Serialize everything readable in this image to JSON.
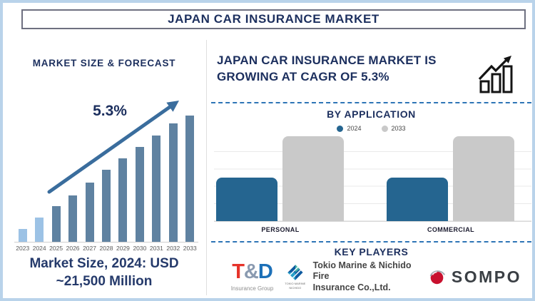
{
  "page": {
    "title": "JAPAN CAR INSURANCE MARKET"
  },
  "colors": {
    "navy": "#1c2f5e",
    "forecast_bar_steel_blue": "#5f82a1",
    "forecast_bar_light_blue": "#9cc2e5",
    "arrow_blue": "#3a6d9d",
    "application_2024_blue": "#256590",
    "application_2033_gray": "#c9c9c9",
    "dashed_separator_blue": "#2e75b6",
    "page_border_blue": "#b9d3ea"
  },
  "left_panel": {
    "heading": "MARKET SIZE & FORECAST",
    "cagr_label": "5.3%",
    "market_size_line1": "Market Size, 2024: USD",
    "market_size_line2": "~21,500 Million"
  },
  "right_panel": {
    "banner_line1": "JAPAN CAR INSURANCE MARKET IS",
    "banner_line2": "GROWING AT CAGR OF 5.3%",
    "by_application": {
      "heading": "BY APPLICATION",
      "legend": [
        {
          "label": "2024",
          "color": "#256590"
        },
        {
          "label": "2033",
          "color": "#c9c9c9"
        }
      ],
      "categories": [
        "PERSONAL",
        "COMMERCIAL"
      ]
    },
    "key_players": {
      "heading": "KEY PLAYERS",
      "players": [
        {
          "name": "T&D Insurance Group",
          "logo_letters": [
            {
              "char": "T",
              "color": "#e6332a"
            },
            {
              "char": "&",
              "color": "#8a9ab0"
            },
            {
              "char": "D",
              "color": "#1c70b8"
            }
          ],
          "subtitle": "Insurance Group"
        },
        {
          "name": "Tokio Marine & Nichido Fire Insurance Co.,Ltd.",
          "icon": "tokio-marine-diamond-icon",
          "icon_caption": "TOKIO MARINE NICHIDO",
          "line1": "Tokio Marine & Nichido Fire",
          "line2": "Insurance Co.,Ltd."
        },
        {
          "name": "SOMPO",
          "icon": "sompo-red-sphere-icon",
          "wordmark": "SOMPO"
        }
      ]
    }
  },
  "chart_data": [
    {
      "type": "bar",
      "title": "MARKET SIZE & FORECAST",
      "categories": [
        "2023",
        "2024",
        "2025",
        "2026",
        "2027",
        "2028",
        "2029",
        "2030",
        "2031",
        "2032",
        "2033"
      ],
      "values": [
        10,
        19,
        28,
        37,
        47,
        57,
        66,
        75,
        84,
        94,
        100
      ],
      "values_note": "relative bar heights in % of 2033 bar; anchor: 2024 = USD ~21,500 Million, growing at CAGR 5.3%",
      "annotation": "5.3%",
      "highlight_years": [
        "2023",
        "2024"
      ],
      "bar_color": "#5f82a1",
      "highlight_color": "#9cc2e5",
      "xlabel": "",
      "ylabel": "",
      "grid": false,
      "legend_position": "none"
    },
    {
      "type": "bar",
      "title": "BY APPLICATION",
      "categories": [
        "PERSONAL",
        "COMMERCIAL"
      ],
      "series": [
        {
          "name": "2024",
          "color": "#256590",
          "values": [
            50,
            50
          ]
        },
        {
          "name": "2033",
          "color": "#c9c9c9",
          "values": [
            98,
            98
          ]
        }
      ],
      "values_note": "relative bar heights in % of chart height",
      "grid": true,
      "legend_position": "top"
    }
  ]
}
